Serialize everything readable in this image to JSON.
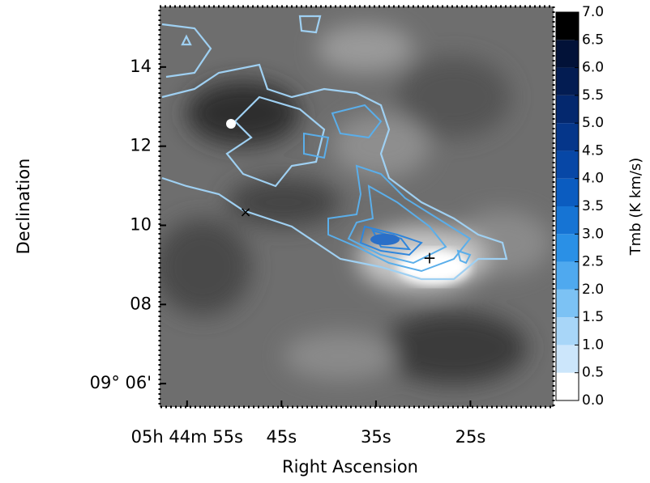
{
  "chart_data": {
    "type": "image",
    "x_label": "Right Ascension",
    "y_label": "Declination",
    "xlim": [
      57.9,
      16.2
    ],
    "xticks": [
      {
        "value": 55,
        "label": "05h 44m 55s"
      },
      {
        "value": 45,
        "label": "45s"
      },
      {
        "value": 35,
        "label": "35s"
      },
      {
        "value": 25,
        "label": "25s"
      }
    ],
    "ylim": [
      5.41,
      15.53
    ],
    "yticks": [
      {
        "value": 6,
        "label": "09° 06'"
      },
      {
        "value": 8,
        "label": "08"
      },
      10,
      12,
      14
    ],
    "colorbar": {
      "label": "Tmb (K km/s)",
      "lim": [
        0,
        7
      ],
      "ticks": [
        {
          "value": 0,
          "label": "0.0"
        },
        {
          "value": 0.5,
          "label": "0.5"
        },
        {
          "value": 1,
          "label": "1.0"
        },
        {
          "value": 1.5,
          "label": "1.5"
        },
        {
          "value": 2,
          "label": "2.0"
        },
        {
          "value": 2.5,
          "label": "2.5"
        },
        {
          "value": 3,
          "label": "3.0"
        },
        {
          "value": 3.5,
          "label": "3.5"
        },
        {
          "value": 4,
          "label": "4.0"
        },
        {
          "value": 4.5,
          "label": "4.5"
        },
        {
          "value": 5,
          "label": "5.0"
        },
        {
          "value": 5.5,
          "label": "5.5"
        },
        {
          "value": 6,
          "label": "6.0"
        },
        {
          "value": 6.5,
          "label": "6.5"
        },
        {
          "value": 7,
          "label": "7.0"
        }
      ],
      "colors": [
        "#ffffff",
        "#cce6fb",
        "#a8d6f8",
        "#7cc2f4",
        "#4fa9ef",
        "#2a90e6",
        "#1674d4",
        "#0b5cc0",
        "#0747a6",
        "#05368a",
        "#04286e",
        "#031c52",
        "#021238",
        "#000000"
      ]
    }
  }
}
